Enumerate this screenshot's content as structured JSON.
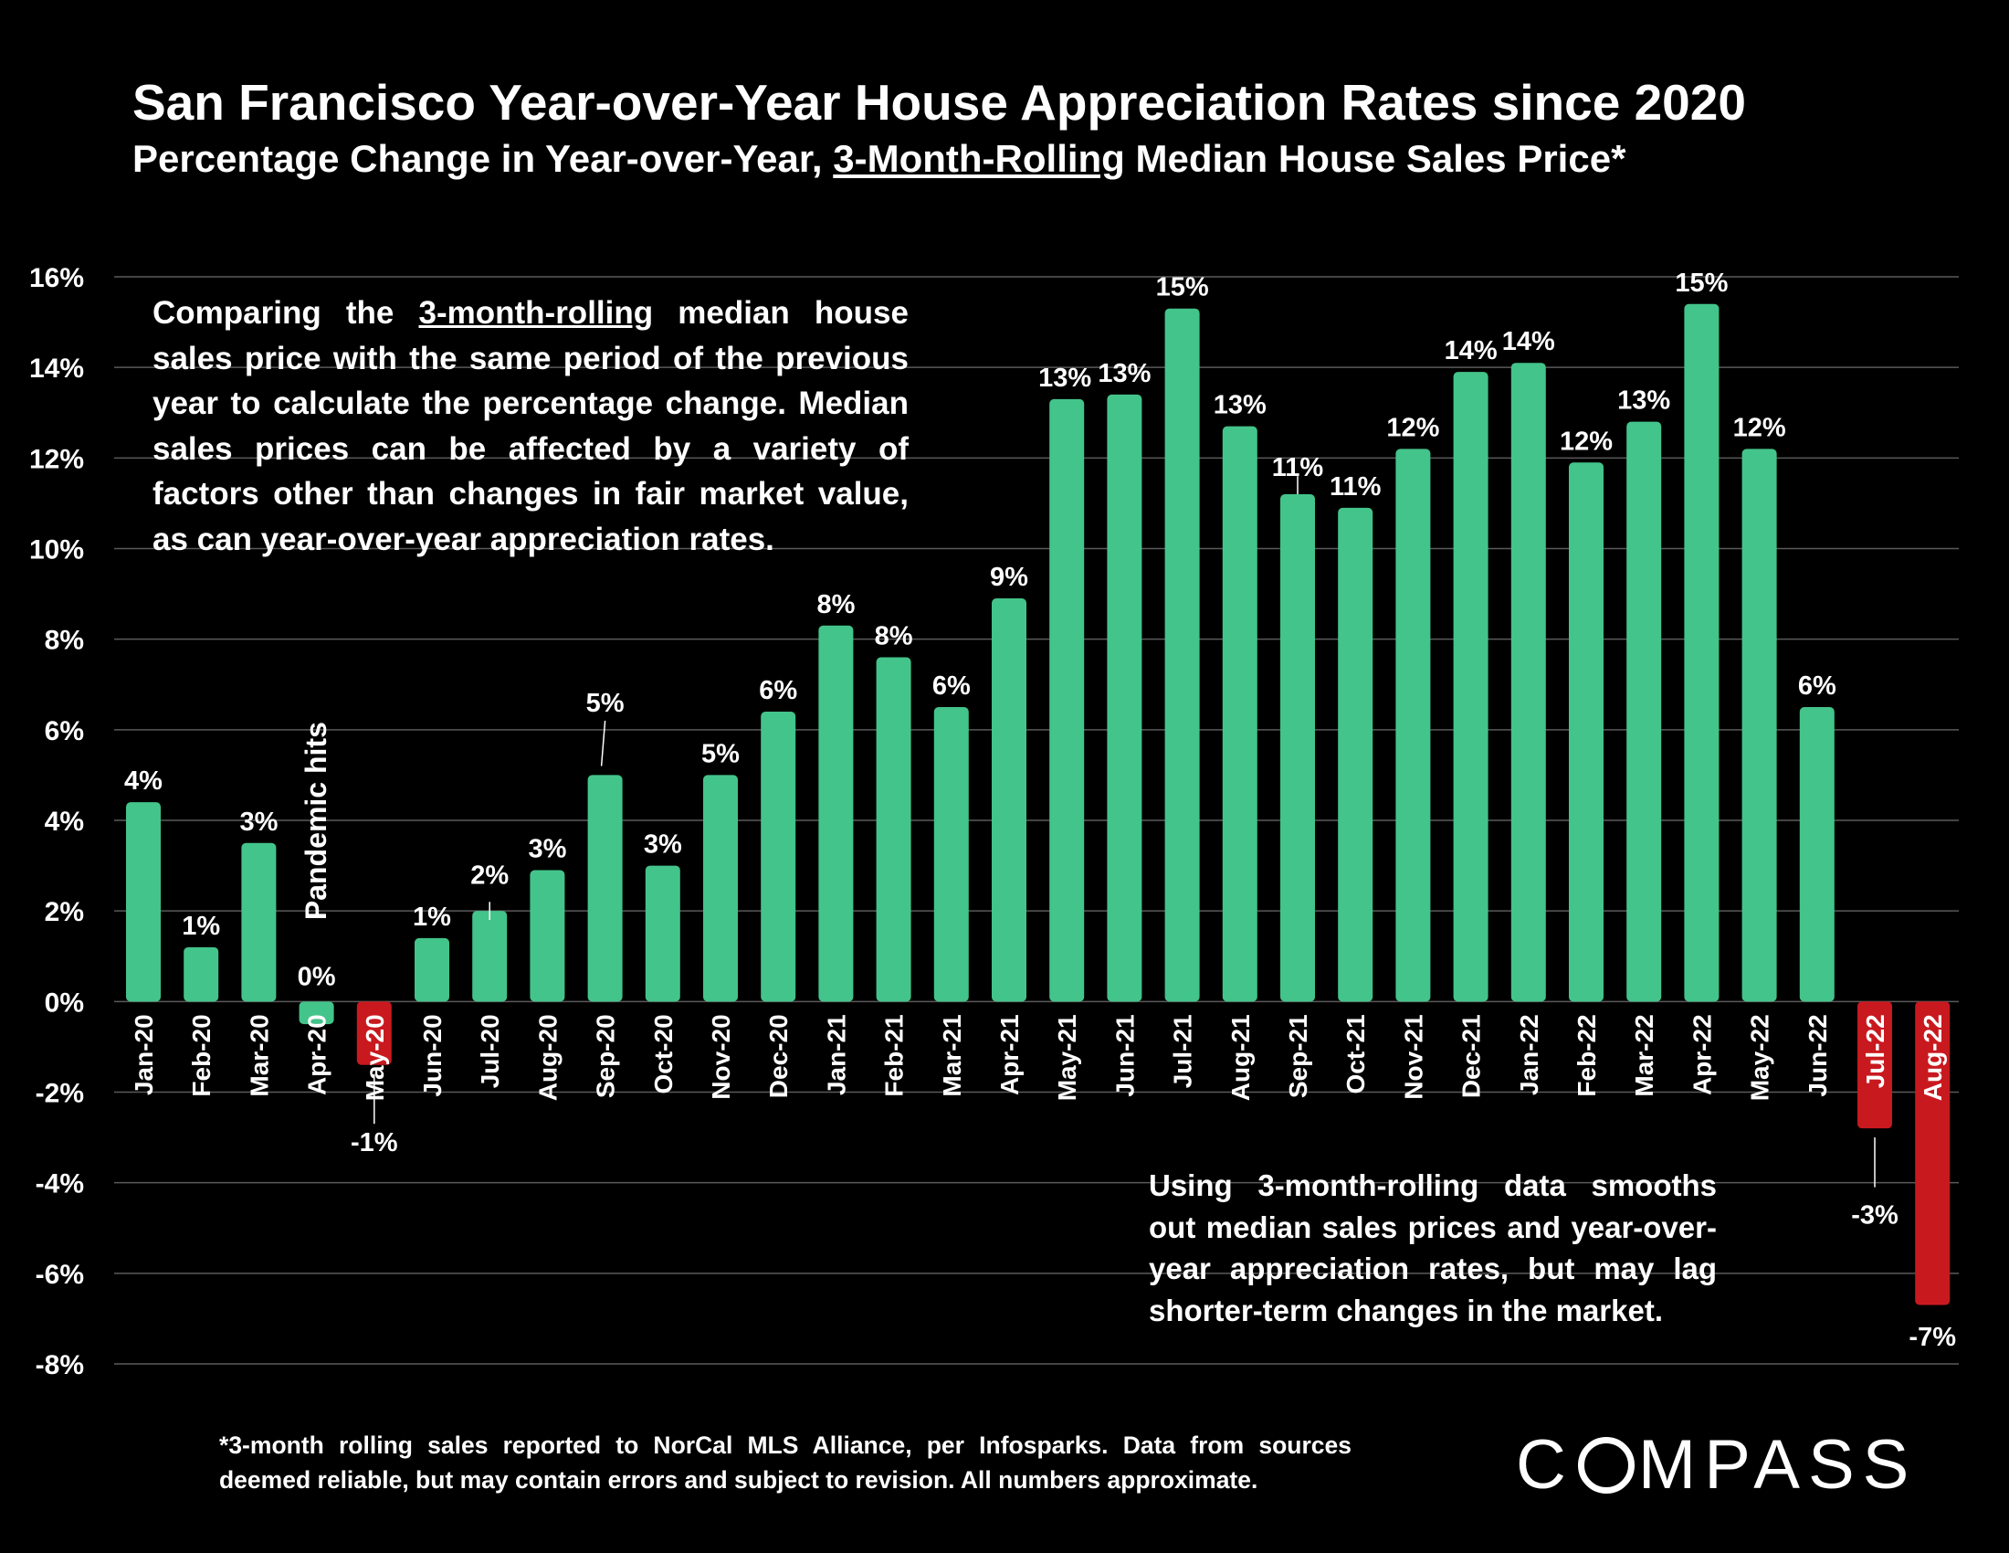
{
  "chart_data": {
    "type": "bar",
    "title": "San Francisco Year-over-Year House Appreciation Rates since 2020",
    "subtitle_pre": "Percentage Change in Year-over-Year, ",
    "subtitle_ul": "3-Month-Rolling",
    "subtitle_post": " Median House Sales Price*",
    "categories": [
      "Jan-20",
      "Feb-20",
      "Mar-20",
      "Apr-20",
      "May-20",
      "Jun-20",
      "Jul-20",
      "Aug-20",
      "Sep-20",
      "Oct-20",
      "Nov-20",
      "Dec-20",
      "Jan-21",
      "Feb-21",
      "Mar-21",
      "Apr-21",
      "May-21",
      "Jun-21",
      "Jul-21",
      "Aug-21",
      "Sep-21",
      "Oct-21",
      "Nov-21",
      "Dec-21",
      "Jan-22",
      "Feb-22",
      "Mar-22",
      "Apr-22",
      "May-22",
      "Jun-22",
      "Jul-22",
      "Aug-22"
    ],
    "values": [
      4.4,
      1.2,
      3.5,
      -0.5,
      -1.4,
      1.4,
      2.0,
      2.9,
      5.0,
      3.0,
      5.0,
      6.4,
      8.3,
      7.6,
      6.5,
      8.9,
      13.3,
      13.4,
      15.3,
      12.7,
      11.2,
      10.9,
      12.2,
      13.9,
      14.1,
      11.9,
      12.8,
      15.4,
      12.2,
      6.5,
      -2.8,
      -6.7
    ],
    "labels": [
      "4%",
      "1%",
      "3%",
      "0%",
      "-1%",
      "1%",
      "2%",
      "3%",
      "5%",
      "3%",
      "5%",
      "6%",
      "8%",
      "8%",
      "6%",
      "9%",
      "13%",
      "13%",
      "15%",
      "13%",
      "11%",
      "11%",
      "12%",
      "14%",
      "14%",
      "12%",
      "13%",
      "15%",
      "12%",
      "6%",
      "-3%",
      "-7%"
    ],
    "highlight": [
      "May-20",
      "Jul-22",
      "Aug-22"
    ],
    "ylim": [
      -8,
      16
    ],
    "yticks": [
      "-8%",
      "-6%",
      "-4%",
      "-2%",
      "0%",
      "2%",
      "4%",
      "6%",
      "8%",
      "10%",
      "12%",
      "14%",
      "16%"
    ],
    "grid": true,
    "legend": "none",
    "colors": {
      "positive": "#43C48A",
      "negative": "#C8191F",
      "grid": "#5a5a5a",
      "background": "#000000"
    },
    "annotation": "Pandemic hits"
  },
  "notes": {
    "left_pre": "Comparing the ",
    "left_ul": "3-month-rolling",
    "left_post": " median house sales price with the same period of the previous year to calculate the percentage change. Median sales prices can be affected by a variety of factors other than changes in fair market value, as can year-over-year appreciation rates.",
    "right": "Using 3-month-rolling data smooths out median sales prices and year-over-year appreciation rates, but may lag shorter-term changes in the market."
  },
  "footnote": "*3-month rolling sales reported to NorCal MLS Alliance, per Infosparks. Data from sources deemed reliable, but may contain errors and subject to revision. All numbers approximate.",
  "logo": {
    "pre": "C",
    "post": "MPASS",
    "icon": "compass-o-icon"
  }
}
